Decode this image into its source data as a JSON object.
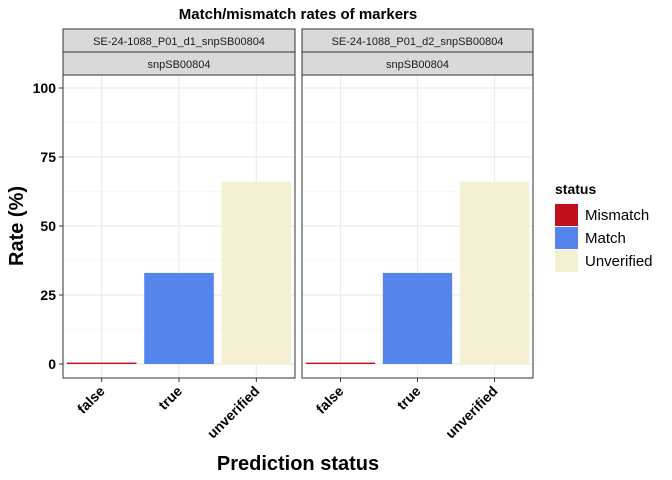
{
  "chart_data": {
    "type": "bar",
    "title": "Match/mismatch rates of markers",
    "xlabel": "Prediction status",
    "ylabel": "Rate (%)",
    "ylim": [
      0,
      100
    ],
    "y_ticks": [
      0,
      25,
      50,
      75,
      100
    ],
    "categories": [
      "false",
      "true",
      "unverified"
    ],
    "legend": {
      "title": "status",
      "position": "right",
      "entries": [
        {
          "label": "Mismatch",
          "color": "#c0101e"
        },
        {
          "label": "Match",
          "color": "#5585ea"
        },
        {
          "label": "Unverified",
          "color": "#f3f0d4"
        }
      ]
    },
    "panels": [
      {
        "strip_top": "SE-24-1088_P01_d1_snpSB00804",
        "strip_bottom": "snpSB00804",
        "values": [
          0.5,
          33,
          66
        ],
        "status": [
          "Mismatch",
          "Match",
          "Unverified"
        ]
      },
      {
        "strip_top": "SE-24-1088_P01_d2_snpSB00804",
        "strip_bottom": "snpSB00804",
        "values": [
          0.5,
          33,
          66
        ],
        "status": [
          "Mismatch",
          "Match",
          "Unverified"
        ]
      }
    ],
    "grid": true
  }
}
